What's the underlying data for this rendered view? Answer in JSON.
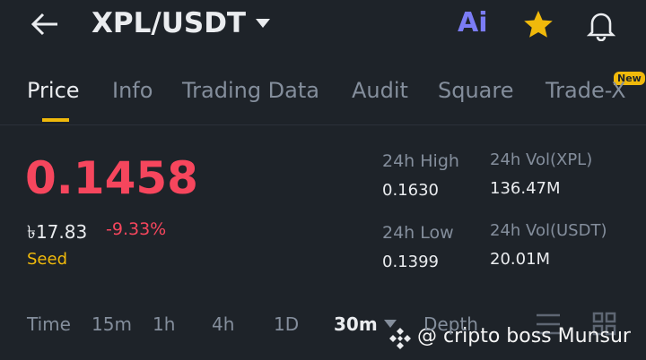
{
  "header": {
    "pair": "XPL/USDT",
    "ai_icon": "Ai"
  },
  "tabs": {
    "items": [
      "Price",
      "Info",
      "Trading Data",
      "Audit",
      "Square",
      "Trade-X"
    ],
    "badge": "New"
  },
  "price": {
    "last": "0.1458",
    "local": "৳17.83",
    "change": "-9.33%",
    "tag": "Seed"
  },
  "stats": {
    "high_label": "24h High",
    "high": "0.1630",
    "low_label": "24h Low",
    "low": "0.1399",
    "vol_base_label": "24h Vol(XPL)",
    "vol_base": "136.47M",
    "vol_quote_label": "24h Vol(USDT)",
    "vol_quote": "20.01M"
  },
  "intervals": {
    "items": [
      "Time",
      "15m",
      "1h",
      "4h",
      "1D",
      "30m",
      "Depth"
    ]
  },
  "watermark": "@ cripto boss Munsur"
}
